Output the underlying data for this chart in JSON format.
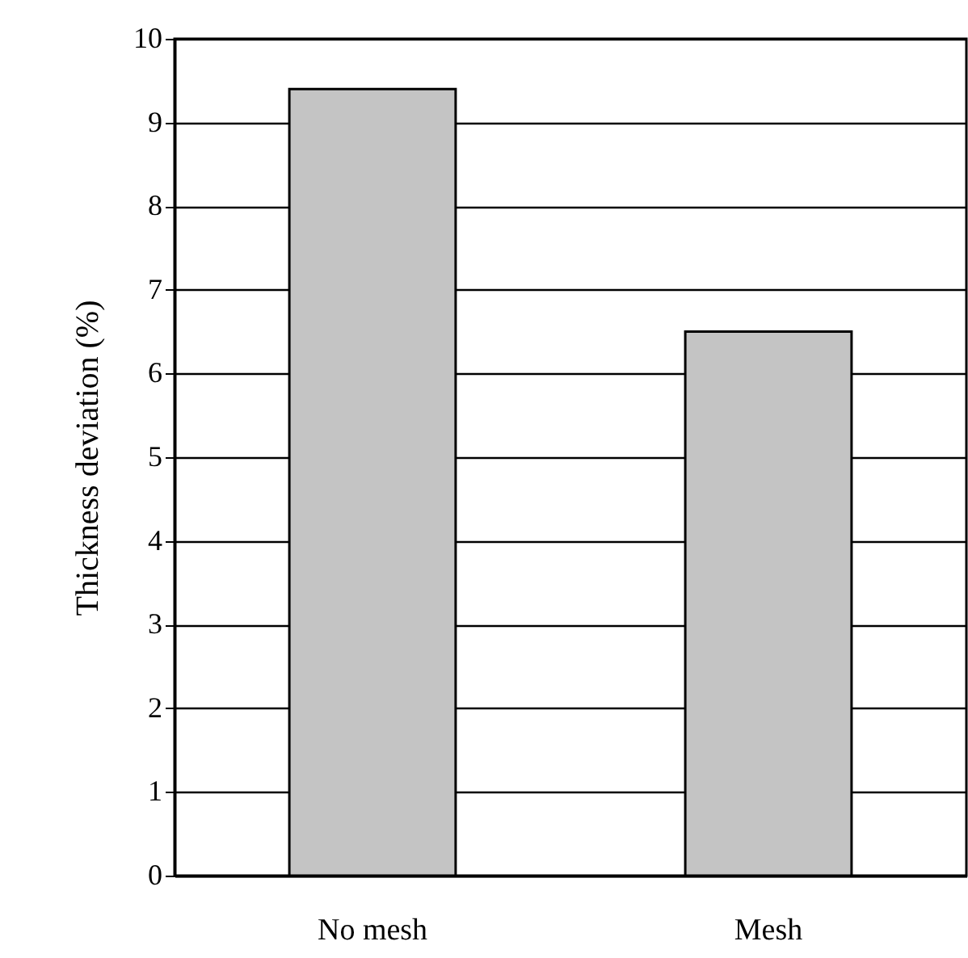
{
  "chart_data": {
    "type": "bar",
    "categories": [
      "No mesh",
      "Mesh"
    ],
    "values": [
      9.4,
      6.5
    ],
    "color": "#c4c4c4",
    "ylabel": "Thickness deviation (%)",
    "ylim": [
      0,
      10
    ],
    "yticks": [
      0,
      1,
      2,
      3,
      4,
      5,
      6,
      7,
      8,
      9,
      10
    ],
    "grid": "y"
  }
}
